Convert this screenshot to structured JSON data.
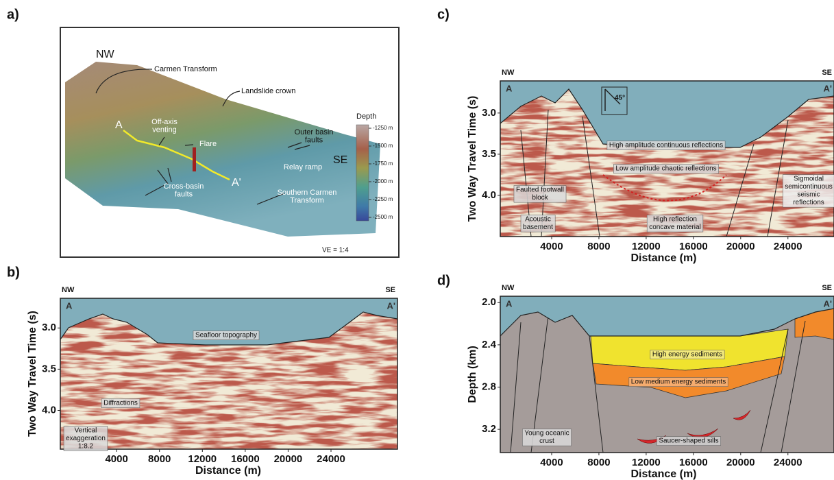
{
  "map": {
    "label": "a)",
    "compass": [
      "NW",
      "SE"
    ],
    "section_ends": [
      "A",
      "A'"
    ],
    "annotations": [
      "Carmen Transform",
      "Landslide crown",
      [
        "Off-axis",
        "venting"
      ],
      "Flare",
      [
        "Outer basin",
        "faults"
      ],
      "Relay ramp",
      [
        "Cross-basin",
        "faults"
      ],
      [
        "Southern Carmen",
        "Transform"
      ]
    ],
    "legend": {
      "title": "Depth",
      "labels": [
        "-1250 m",
        "-1500 m",
        "-1750 m",
        "-2000 m",
        "-2250 m",
        "-2500 m"
      ]
    },
    "vertical_exaggeration": "VE = 1:4"
  },
  "profiles": [
    {
      "label": "b)",
      "compass": [
        "NW",
        "SE"
      ],
      "section_ends": [
        "A",
        "A'"
      ],
      "xlabel": "Distance (m)",
      "ylabel": "Two Way Travel Time (s)",
      "xlim": [
        -1250,
        30200
      ],
      "ylim": [
        2.64,
        4.47
      ],
      "xticks": [
        4000,
        8000,
        12000,
        16000,
        20000,
        24000
      ],
      "yticks": [
        {
          "value": 3,
          "label": "3.0"
        },
        3.5,
        {
          "value": 4,
          "label": "4.0"
        }
      ],
      "annotations": [
        "Seafloor topography",
        "Diffractions",
        [
          "Vertical",
          "exaggeration",
          "1:8.2"
        ]
      ]
    },
    {
      "label": "c)",
      "compass": [
        "NW",
        "SE"
      ],
      "section_ends": [
        "A",
        "A'"
      ],
      "xlabel": "Distance (m)",
      "ylabel": "Two Way Travel Time (s)",
      "xlim": [
        -350,
        27900
      ],
      "ylim": [
        2.61,
        4.5
      ],
      "xticks": [
        4000,
        8000,
        12000,
        16000,
        20000,
        24000
      ],
      "yticks": [
        {
          "value": 3,
          "label": "3.0"
        },
        3.5,
        {
          "value": 4,
          "label": "4.0"
        }
      ],
      "dip": "45°",
      "annotations": [
        "High amplitude continuous reflections",
        "Low amplitude chaotic reflections",
        [
          "Faulted footwall",
          "block"
        ],
        [
          "Sigmoidal",
          "semicontinuous",
          "seismic",
          "reflections"
        ],
        [
          "Acoustic",
          "basement"
        ],
        [
          "High reflection",
          "concave material"
        ]
      ]
    },
    {
      "label": "d)",
      "compass": [
        "NW",
        "SE"
      ],
      "section_ends": [
        "A",
        "A'"
      ],
      "xlabel": "Distance (m)",
      "ylabel": "Depth (km)",
      "xlim": [
        -350,
        27900
      ],
      "ylim": [
        1.94,
        3.42
      ],
      "xticks": [
        4000,
        8000,
        12000,
        16000,
        20000,
        24000
      ],
      "yticks": [
        {
          "value": 2,
          "label": "2.0"
        },
        2.4,
        2.8,
        3.2
      ],
      "annotations": [
        "High energy sediments",
        "Low medium energy sediments",
        "Saucer-shaped sills",
        [
          "Young oceanic",
          "crust"
        ]
      ]
    }
  ]
}
